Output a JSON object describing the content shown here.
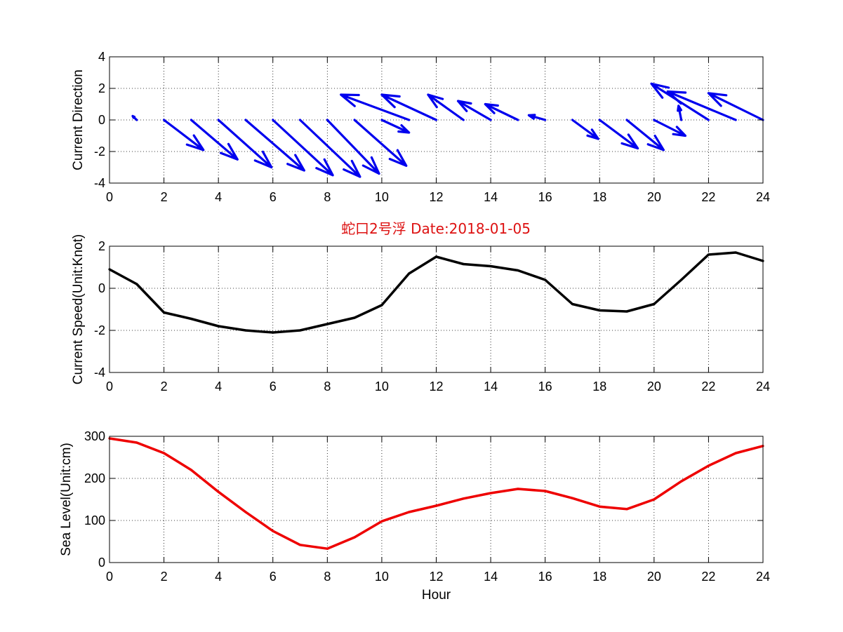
{
  "title": "蛇口2号浮   Date:2018-01-05",
  "title_color": "#dd1111",
  "chart_data": [
    {
      "type": "quiver",
      "ylabel": "Current Direction",
      "xlabel": "",
      "xlim": [
        0,
        24
      ],
      "ylim": [
        -4,
        4
      ],
      "xticks": [
        0,
        2,
        4,
        6,
        8,
        10,
        12,
        14,
        16,
        18,
        20,
        22,
        24
      ],
      "yticks": [
        -4,
        -2,
        0,
        2,
        4
      ],
      "grid": true,
      "color": "#0000ee",
      "vectors": [
        {
          "x": 1,
          "u": -0.15,
          "v": 0.25
        },
        {
          "x": 2,
          "u": 1.45,
          "v": -1.9
        },
        {
          "x": 3,
          "u": 1.7,
          "v": -2.5
        },
        {
          "x": 4,
          "u": 1.95,
          "v": -3.0
        },
        {
          "x": 5,
          "u": 2.15,
          "v": -3.2
        },
        {
          "x": 6,
          "u": 2.2,
          "v": -3.5
        },
        {
          "x": 7,
          "u": 2.2,
          "v": -3.6
        },
        {
          "x": 8,
          "u": 1.9,
          "v": -3.4
        },
        {
          "x": 9,
          "u": 1.9,
          "v": -2.9
        },
        {
          "x": 10,
          "u": 1.0,
          "v": -0.8
        },
        {
          "x": 11,
          "u": -2.5,
          "v": 1.6
        },
        {
          "x": 12,
          "u": -2.0,
          "v": 1.6
        },
        {
          "x": 13,
          "u": -1.3,
          "v": 1.6
        },
        {
          "x": 14,
          "u": -1.2,
          "v": 1.2
        },
        {
          "x": 15,
          "u": -1.2,
          "v": 1.0
        },
        {
          "x": 16,
          "u": -0.6,
          "v": 0.3
        },
        {
          "x": 17,
          "u": 0.95,
          "v": -1.2
        },
        {
          "x": 18,
          "u": 1.4,
          "v": -1.8
        },
        {
          "x": 19,
          "u": 1.35,
          "v": -1.9
        },
        {
          "x": 20,
          "u": 1.15,
          "v": -1.0
        },
        {
          "x": 21,
          "u": -0.1,
          "v": 0.9
        },
        {
          "x": 22,
          "u": -2.1,
          "v": 2.3
        },
        {
          "x": 23,
          "u": -2.5,
          "v": 1.8
        },
        {
          "x": 24,
          "u": -2.0,
          "v": 1.7
        }
      ]
    },
    {
      "type": "line",
      "ylabel": "Current Speed(Unit:Knot)",
      "xlabel": "",
      "xlim": [
        0,
        24
      ],
      "ylim": [
        -4,
        2
      ],
      "xticks": [
        0,
        2,
        4,
        6,
        8,
        10,
        12,
        14,
        16,
        18,
        20,
        22,
        24
      ],
      "yticks": [
        -4,
        -2,
        0,
        2
      ],
      "grid": true,
      "color": "#000000",
      "x": [
        0,
        1,
        2,
        3,
        4,
        5,
        6,
        7,
        8,
        9,
        10,
        11,
        12,
        13,
        14,
        15,
        16,
        17,
        18,
        19,
        20,
        21,
        22,
        23,
        24
      ],
      "y": [
        0.9,
        0.2,
        -1.15,
        -1.45,
        -1.8,
        -2.0,
        -2.1,
        -2.0,
        -1.7,
        -1.4,
        -0.8,
        0.7,
        1.5,
        1.15,
        1.05,
        0.85,
        0.4,
        -0.75,
        -1.05,
        -1.1,
        -0.75,
        0.4,
        1.6,
        1.7,
        1.3
      ]
    },
    {
      "type": "line",
      "ylabel": "Sea Level(Unit:cm)",
      "xlabel": "Hour",
      "xlim": [
        0,
        24
      ],
      "ylim": [
        0,
        300
      ],
      "xticks": [
        0,
        2,
        4,
        6,
        8,
        10,
        12,
        14,
        16,
        18,
        20,
        22,
        24
      ],
      "yticks": [
        0,
        100,
        200,
        300
      ],
      "grid": true,
      "color": "#ee0000",
      "x": [
        0,
        1,
        2,
        3,
        4,
        5,
        6,
        7,
        8,
        9,
        10,
        11,
        12,
        13,
        14,
        15,
        16,
        17,
        18,
        19,
        20,
        21,
        22,
        23,
        24
      ],
      "y": [
        295,
        285,
        260,
        220,
        168,
        120,
        75,
        42,
        33,
        60,
        98,
        120,
        135,
        152,
        165,
        175,
        170,
        153,
        133,
        127,
        150,
        193,
        230,
        260,
        277
      ]
    }
  ]
}
